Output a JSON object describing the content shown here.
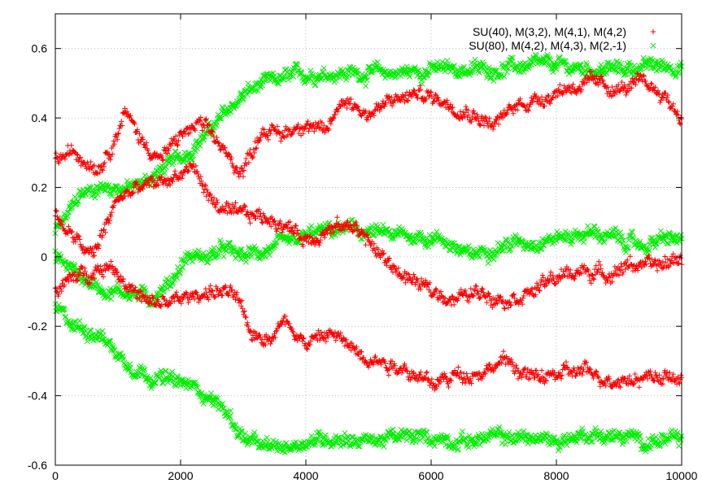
{
  "chart_data": {
    "type": "scatter",
    "xlim": [
      0,
      10000
    ],
    "ylim": [
      -0.6,
      0.7
    ],
    "x_ticks": [
      "0",
      "2000",
      "4000",
      "6000",
      "8000",
      "10000"
    ],
    "x_tick_values": [
      0,
      2000,
      4000,
      6000,
      8000,
      10000
    ],
    "y_ticks": [
      "0.6",
      "0.4",
      "0.2",
      "0",
      "-0.2",
      "-0.4",
      "-0.6"
    ],
    "y_tick_values": [
      0.6,
      0.4,
      0.2,
      0,
      -0.2,
      -0.4,
      -0.6
    ],
    "grid": true,
    "legend_position": "top-right",
    "series": [
      {
        "name": "SU(40), M(3,2), M(4,1), M(4,2)",
        "marker": "+",
        "color": "#ff0000",
        "traces": [
          {
            "x": [
              0,
              300,
              700,
              1000,
              1100,
              1400,
              1700,
              2000,
              2300,
              2600,
              2800,
              3000,
              3300,
              3600,
              4000,
              4300,
              4600,
              5000,
              5400,
              5800,
              6200,
              6600,
              7000,
              7400,
              7800,
              8200,
              8600,
              9000,
              9400,
              9700,
              10000
            ],
            "y": [
              0.28,
              0.3,
              0.26,
              0.36,
              0.42,
              0.33,
              0.28,
              0.35,
              0.38,
              0.33,
              0.27,
              0.25,
              0.37,
              0.35,
              0.39,
              0.35,
              0.46,
              0.41,
              0.45,
              0.47,
              0.45,
              0.42,
              0.38,
              0.44,
              0.46,
              0.49,
              0.5,
              0.48,
              0.5,
              0.47,
              0.4
            ]
          },
          {
            "x": [
              0,
              300,
              600,
              1000,
              1400,
              1800,
              2200,
              2500,
              2800,
              3200,
              3600,
              4000,
              4400,
              4800,
              5200,
              5600,
              6000,
              6400,
              6800,
              7200,
              7600,
              8000,
              8400,
              8800,
              9200,
              9600,
              10000
            ],
            "y": [
              0.12,
              0.05,
              0.0,
              0.17,
              0.2,
              0.22,
              0.26,
              0.16,
              0.12,
              0.12,
              0.1,
              0.05,
              0.08,
              0.09,
              0.0,
              -0.06,
              -0.1,
              -0.12,
              -0.1,
              -0.12,
              -0.1,
              -0.06,
              -0.04,
              -0.05,
              -0.02,
              -0.03,
              0.0
            ]
          },
          {
            "x": [
              0,
              300,
              600,
              900,
              1200,
              1500,
              1800,
              2100,
              2400,
              2700,
              2900,
              3100,
              3400,
              3700,
              4000,
              4400,
              4800,
              5200,
              5600,
              6000,
              6400,
              6800,
              7200,
              7600,
              8000,
              8400,
              8800,
              9200,
              9600,
              10000
            ],
            "y": [
              -0.1,
              -0.06,
              -0.04,
              -0.02,
              -0.09,
              -0.14,
              -0.13,
              -0.12,
              -0.1,
              -0.1,
              -0.12,
              -0.22,
              -0.23,
              -0.18,
              -0.25,
              -0.22,
              -0.27,
              -0.3,
              -0.32,
              -0.37,
              -0.34,
              -0.33,
              -0.3,
              -0.35,
              -0.34,
              -0.33,
              -0.35,
              -0.35,
              -0.34,
              -0.36
            ]
          }
        ]
      },
      {
        "name": "SU(80), M(4,2), M(4,3), M(2,-1)",
        "marker": "x",
        "color": "#00ee00",
        "traces": [
          {
            "x": [
              0,
              200,
              400,
              700,
              1000,
              1300,
              1700,
              2100,
              2500,
              2800,
              3100,
              3400,
              3800,
              4200,
              4600,
              5000,
              5500,
              6000,
              6500,
              7000,
              7500,
              8000,
              8500,
              9000,
              9500,
              10000
            ],
            "y": [
              0.07,
              0.12,
              0.18,
              0.2,
              0.2,
              0.2,
              0.25,
              0.3,
              0.37,
              0.43,
              0.48,
              0.5,
              0.52,
              0.53,
              0.53,
              0.53,
              0.53,
              0.54,
              0.54,
              0.54,
              0.55,
              0.55,
              0.54,
              0.54,
              0.55,
              0.55
            ]
          },
          {
            "x": [
              0,
              300,
              600,
              900,
              1200,
              1500,
              1800,
              2100,
              2400,
              2700,
              3000,
              3400,
              3800,
              4200,
              4600,
              5000,
              5400,
              5800,
              6200,
              6600,
              7000,
              7400,
              7800,
              8200,
              8600,
              9000,
              9400,
              9700,
              10000
            ],
            "y": [
              0.0,
              -0.04,
              -0.08,
              -0.1,
              -0.1,
              -0.12,
              -0.08,
              0.0,
              0.0,
              0.02,
              0.0,
              0.02,
              0.04,
              0.07,
              0.08,
              0.07,
              0.06,
              0.06,
              0.05,
              0.0,
              0.03,
              0.04,
              0.05,
              0.06,
              0.07,
              0.05,
              0.03,
              0.05,
              0.05
            ]
          },
          {
            "x": [
              0,
              300,
              700,
              1100,
              1500,
              1900,
              2300,
              2700,
              3000,
              3300,
              3600,
              4000,
              4500,
              5000,
              5500,
              6000,
              6500,
              7000,
              7500,
              8000,
              8500,
              9000,
              9500,
              10000
            ],
            "y": [
              -0.15,
              -0.2,
              -0.22,
              -0.3,
              -0.34,
              -0.36,
              -0.38,
              -0.44,
              -0.52,
              -0.55,
              -0.55,
              -0.53,
              -0.52,
              -0.53,
              -0.52,
              -0.52,
              -0.53,
              -0.52,
              -0.52,
              -0.53,
              -0.51,
              -0.52,
              -0.53,
              -0.53
            ]
          }
        ]
      }
    ]
  }
}
